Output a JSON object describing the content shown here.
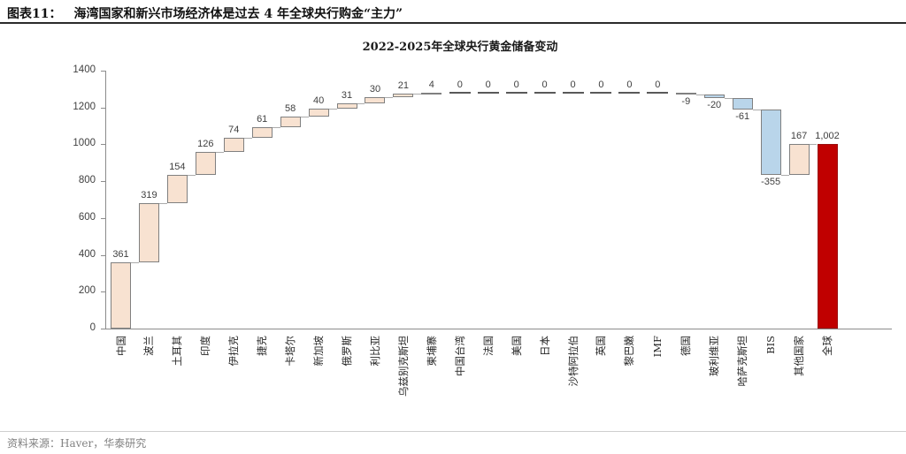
{
  "header": {
    "figure_label": "图表11：",
    "title": "海湾国家和新兴市场经济体是过去 4 年全球央行购金“主力”"
  },
  "chart_data": {
    "type": "bar",
    "subtype": "waterfall",
    "title": "2022-2025年全球央行黄金储备变动",
    "xlabel": "",
    "ylabel": "",
    "ylim": [
      0,
      1400
    ],
    "yticks": [
      0,
      200,
      400,
      600,
      800,
      1000,
      1200,
      1400
    ],
    "grid": false,
    "legend": "none",
    "categories": [
      "中国",
      "波兰",
      "土耳其",
      "印度",
      "伊拉克",
      "捷克",
      "卡塔尔",
      "新加坡",
      "俄罗斯",
      "利比亚",
      "乌兹别克斯坦",
      "柬埔寨",
      "中国台湾",
      "法国",
      "美国",
      "日本",
      "沙特阿拉伯",
      "英国",
      "黎巴嫩",
      "IMF",
      "德国",
      "玻利维亚",
      "哈萨克斯坦",
      "BIS",
      "其他国家",
      "全球"
    ],
    "values": [
      361,
      319,
      154,
      126,
      74,
      61,
      58,
      40,
      31,
      30,
      21,
      4,
      0,
      0,
      0,
      0,
      0,
      0,
      0,
      0,
      -9,
      -20,
      -61,
      -355,
      167,
      1002
    ],
    "value_labels": [
      "361",
      "319",
      "154",
      "126",
      "74",
      "61",
      "58",
      "40",
      "31",
      "30",
      "21",
      "4",
      "0",
      "0",
      "0",
      "0",
      "0",
      "0",
      "0",
      "0",
      "-9",
      "-20",
      "-61",
      "-355",
      "167",
      "1,002"
    ],
    "total_index": 25,
    "colors": {
      "increase": "#f8e2d1",
      "decrease": "#b9d5ea",
      "total": "#c00000",
      "bar_border": "#808080",
      "total_border": "#9a0f0f",
      "zero_marker": "#595959",
      "axis": "#8c8c8c"
    }
  },
  "footer": {
    "source": "资料来源：Haver，华泰研究"
  }
}
